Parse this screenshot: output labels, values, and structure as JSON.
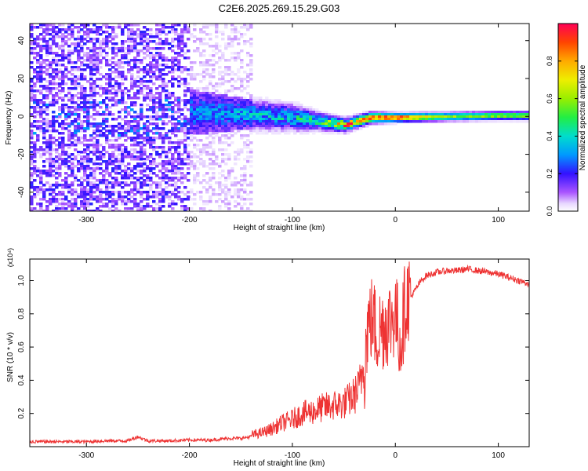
{
  "chart_data": [
    {
      "type": "heatmap",
      "title": "C2E6.2025.269.15.29.G03",
      "xlabel": "Height of straight line (km)",
      "ylabel": "Frequency (Hz)",
      "xlim": [
        -355,
        130
      ],
      "ylim": [
        -50,
        49
      ],
      "xticks": [
        -300,
        -200,
        -100,
        0,
        100
      ],
      "xtick_labels": [
        "-300",
        "-200",
        "-100",
        "0",
        "100"
      ],
      "yticks": [
        -40,
        -20,
        0,
        20,
        40
      ],
      "ytick_labels": [
        "-40",
        "-20",
        "0",
        "20",
        "40"
      ],
      "grid": false,
      "colorbar": {
        "label": "Normalized spectral amplitude",
        "range": [
          0,
          1
        ],
        "ticks": [
          0.0,
          0.2,
          0.4,
          0.6,
          0.8
        ],
        "tick_labels": [
          "0.0",
          "0.2",
          "0.4",
          "0.6",
          "0.8"
        ],
        "colormap": "rainbow (violet to red)"
      },
      "description_points": [
        {
          "x": -300,
          "y_center": 0,
          "spread": 49,
          "amplitude": 0.08
        },
        {
          "x": -200,
          "y_center": 3,
          "spread": 10,
          "amplitude": 0.3
        },
        {
          "x": -150,
          "y_center": 2,
          "spread": 7,
          "amplitude": 0.35
        },
        {
          "x": -100,
          "y_center": 0,
          "spread": 6,
          "amplitude": 0.4
        },
        {
          "x": -75,
          "y_center": -2,
          "spread": 4,
          "amplitude": 0.45
        },
        {
          "x": -50,
          "y_center": -4,
          "spread": 3,
          "amplitude": 0.8
        },
        {
          "x": -25,
          "y_center": 0,
          "spread": 2.5,
          "amplitude": 0.9
        },
        {
          "x": 0,
          "y_center": 0,
          "spread": 2,
          "amplitude": 0.95
        },
        {
          "x": 50,
          "y_center": 0.5,
          "spread": 2,
          "amplitude": 0.6
        },
        {
          "x": 100,
          "y_center": 1,
          "spread": 2,
          "amplitude": 0.6
        },
        {
          "x": 130,
          "y_center": 1,
          "spread": 2,
          "amplitude": 0.6
        }
      ]
    },
    {
      "type": "line",
      "title": "",
      "xlabel": "Height of straight line (km)",
      "ylabel": "SNR (10 * v/v)",
      "scale_label": "(x10⁴)",
      "xlim": [
        -355,
        130
      ],
      "ylim": [
        0,
        1.13
      ],
      "xticks": [
        -300,
        -200,
        -100,
        0,
        100
      ],
      "xtick_labels": [
        "-300",
        "-200",
        "-100",
        "0",
        "100"
      ],
      "yticks": [
        0.2,
        0.4,
        0.6,
        0.8,
        1.0
      ],
      "ytick_labels": [
        "0.2",
        "0.4",
        "0.6",
        "0.8",
        "1.0"
      ],
      "grid": false,
      "series": [
        {
          "name": "SNR",
          "color": "#ee3333",
          "x": [
            -355,
            -320,
            -300,
            -280,
            -260,
            -250,
            -240,
            -220,
            -200,
            -180,
            -160,
            -150,
            -140,
            -130,
            -120,
            -110,
            -100,
            -90,
            -80,
            -70,
            -60,
            -50,
            -40,
            -35,
            -30,
            -27,
            -25,
            -22,
            -18,
            -12,
            -8,
            -5,
            0,
            5,
            8,
            10,
            15,
            20,
            25,
            30,
            40,
            50,
            60,
            70,
            80,
            90,
            100,
            110,
            120,
            130
          ],
          "y": [
            0.03,
            0.03,
            0.03,
            0.035,
            0.035,
            0.06,
            0.035,
            0.035,
            0.04,
            0.04,
            0.05,
            0.05,
            0.06,
            0.07,
            0.09,
            0.12,
            0.14,
            0.17,
            0.18,
            0.2,
            0.21,
            0.22,
            0.26,
            0.3,
            0.45,
            0.7,
            0.72,
            0.75,
            0.65,
            0.7,
            0.72,
            0.73,
            0.78,
            0.6,
            0.75,
            0.85,
            0.9,
            0.95,
            1.0,
            1.03,
            1.05,
            1.06,
            1.06,
            1.07,
            1.06,
            1.05,
            1.04,
            1.02,
            1.0,
            0.98
          ]
        }
      ]
    }
  ]
}
